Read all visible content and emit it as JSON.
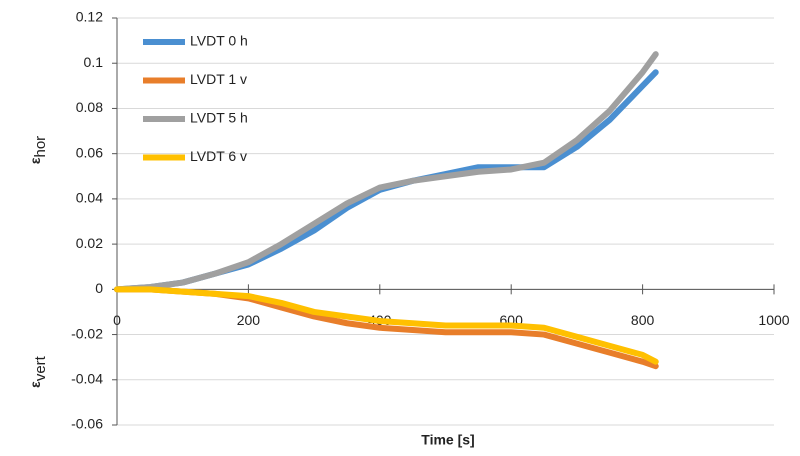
{
  "chart_data": {
    "type": "line",
    "y_labels": [
      {
        "symbol": "ε",
        "sub": "hor"
      },
      {
        "symbol": "ε",
        "sub": "vert"
      }
    ],
    "xlabel": "Time [s]",
    "x": [
      0,
      50,
      100,
      150,
      200,
      250,
      300,
      350,
      400,
      450,
      500,
      550,
      600,
      650,
      700,
      750,
      800,
      820
    ],
    "series": [
      {
        "name": "LVDT 0 h",
        "color": "#4a8fd1",
        "values": [
          0,
          0.001,
          0.003,
          0.007,
          0.011,
          0.018,
          0.026,
          0.036,
          0.044,
          0.048,
          0.051,
          0.054,
          0.054,
          0.054,
          0.063,
          0.075,
          0.09,
          0.096
        ]
      },
      {
        "name": "LVDT 1 v",
        "color": "#e87e2a",
        "values": [
          0,
          0,
          -0.001,
          -0.002,
          -0.004,
          -0.008,
          -0.012,
          -0.015,
          -0.017,
          -0.018,
          -0.019,
          -0.019,
          -0.019,
          -0.02,
          -0.024,
          -0.028,
          -0.032,
          -0.034
        ]
      },
      {
        "name": "LVDT 5 h",
        "color": "#a0a0a0",
        "values": [
          0,
          0.001,
          0.003,
          0.007,
          0.012,
          0.02,
          0.029,
          0.038,
          0.045,
          0.048,
          0.05,
          0.052,
          0.053,
          0.056,
          0.066,
          0.079,
          0.096,
          0.104
        ]
      },
      {
        "name": "LVDT 6 v",
        "color": "#ffc000",
        "values": [
          0,
          0,
          -0.001,
          -0.002,
          -0.003,
          -0.006,
          -0.01,
          -0.012,
          -0.014,
          -0.015,
          -0.016,
          -0.016,
          -0.016,
          -0.017,
          -0.021,
          -0.025,
          -0.029,
          -0.032
        ]
      }
    ],
    "xlim": [
      0,
      1000
    ],
    "xticks": [
      0,
      200,
      400,
      600,
      800,
      1000
    ],
    "ylim": [
      -0.06,
      0.12
    ],
    "yticks": [
      0.12,
      0.1,
      0.08,
      0.06,
      0.04,
      0.02,
      0,
      -0.02,
      -0.04,
      -0.06
    ],
    "grid": true,
    "legend": "upper-left"
  }
}
